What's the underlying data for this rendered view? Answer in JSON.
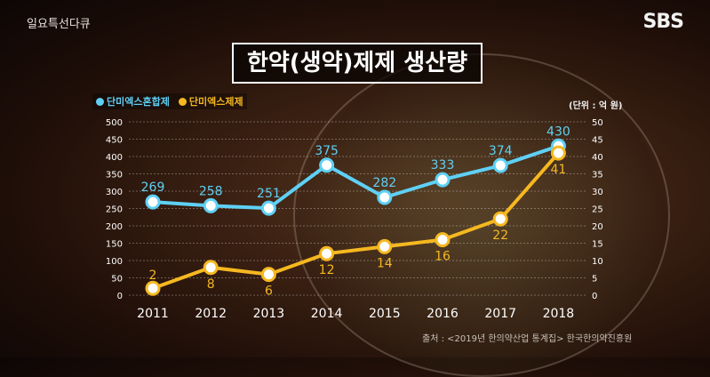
{
  "header": {
    "program": "일요특선다큐",
    "logo": "SBS"
  },
  "chart_data": {
    "type": "line",
    "title": "한약(생약)제제 생산량",
    "unit_label": "(단위 : 억 원)",
    "categories": [
      "2011",
      "2012",
      "2013",
      "2014",
      "2015",
      "2016",
      "2017",
      "2018"
    ],
    "y_left": {
      "range": [
        0,
        500
      ],
      "ticks": [
        0,
        50,
        100,
        150,
        200,
        250,
        300,
        350,
        400,
        450,
        500
      ]
    },
    "y_right": {
      "range": [
        0,
        50
      ],
      "ticks": [
        0,
        5,
        10,
        15,
        20,
        25,
        30,
        35,
        40,
        45,
        50
      ]
    },
    "grid": true,
    "legend_position": "top-left",
    "series": [
      {
        "name": "단미엑스혼합제",
        "axis": "left",
        "color": "#5fd0f5",
        "values": [
          269,
          258,
          251,
          375,
          282,
          333,
          374,
          430
        ]
      },
      {
        "name": "단미엑스제제",
        "axis": "right",
        "color": "#f5b820",
        "values": [
          2,
          8,
          6,
          12,
          14,
          16,
          22,
          41
        ]
      }
    ]
  },
  "source": "출처 : <2019년 한의약산업 통계집> 한국한의약진흥원"
}
